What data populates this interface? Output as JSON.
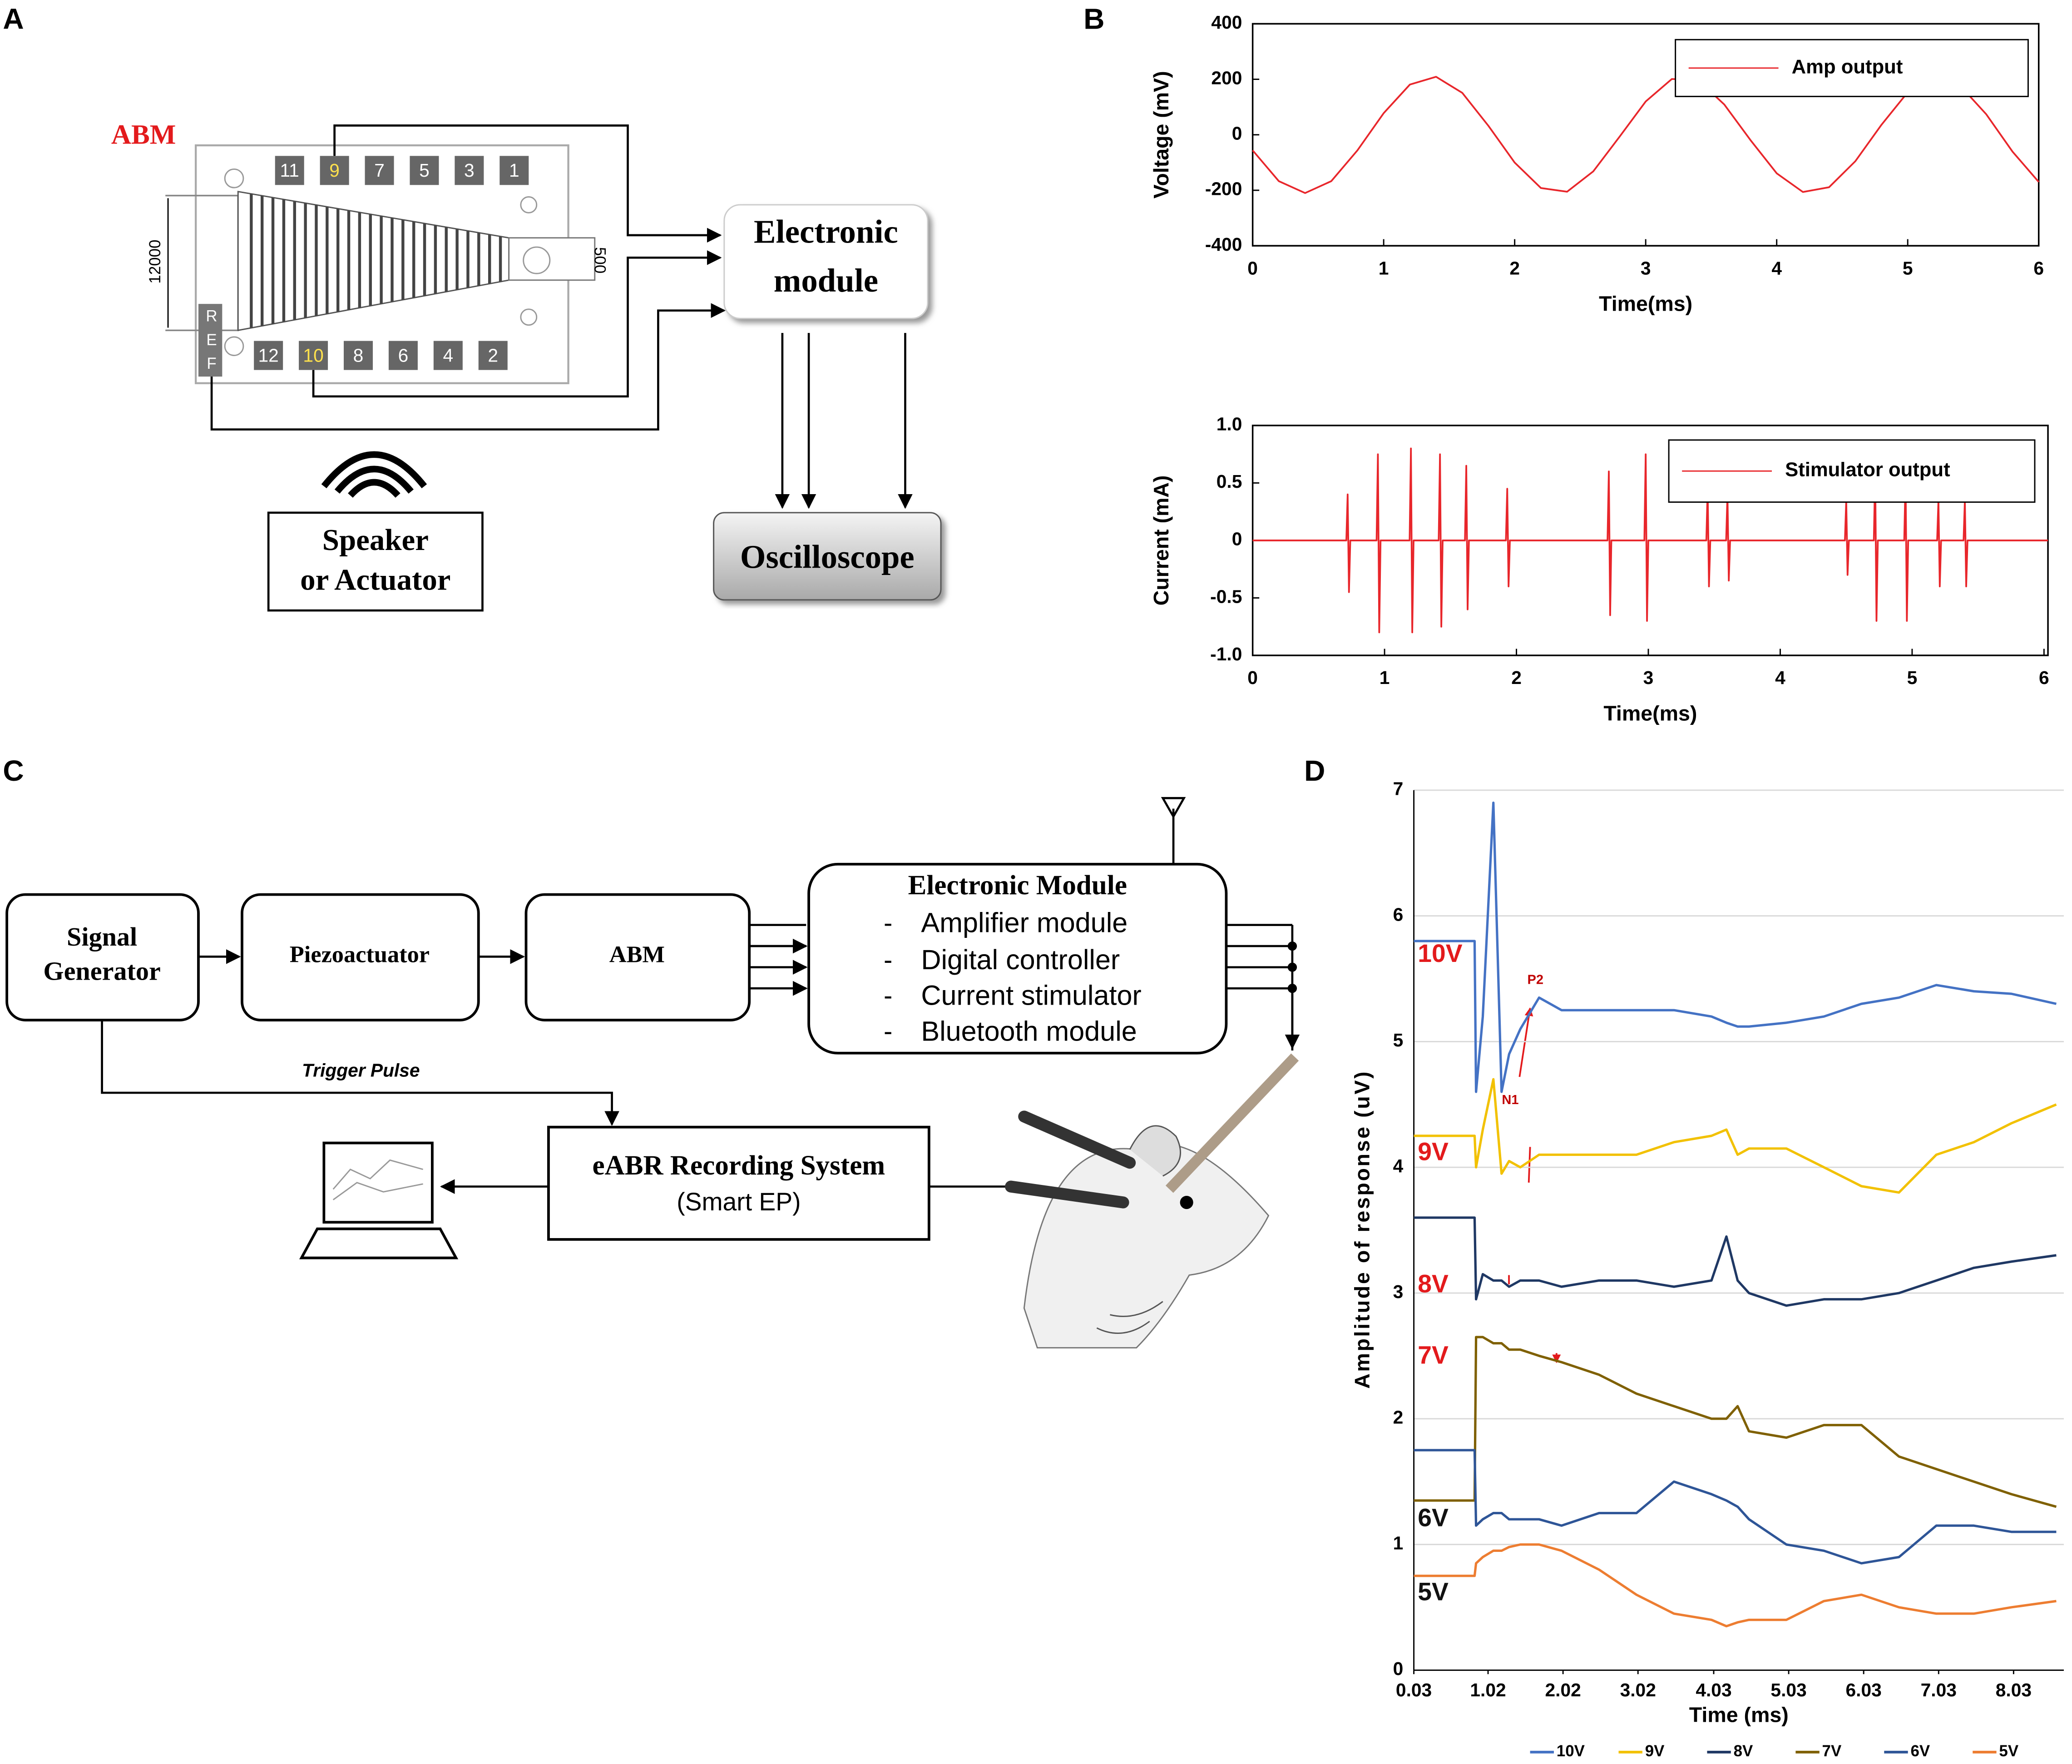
{
  "panel_labels": [
    "A",
    "B",
    "C",
    "D"
  ],
  "diagram_a": {
    "abm_label": "ABM",
    "electrodes_top": [
      "11",
      "9",
      "7",
      "5",
      "3",
      "1"
    ],
    "electrodes_bottom": [
      "12",
      "10",
      "8",
      "6",
      "4",
      "2"
    ],
    "ref": [
      "R",
      "E",
      "F"
    ],
    "dimension_left": "12000",
    "dimension_right": "500",
    "electronic_module": [
      "Electronic",
      "module"
    ],
    "speaker": [
      "Speaker",
      "or Actuator"
    ],
    "oscilloscope": "Oscilloscope"
  },
  "diagram_c": {
    "signal_generator": [
      "Signal",
      "Generator"
    ],
    "piezoactuator": "Piezoactuator",
    "abm": "ABM",
    "electronic_module": {
      "title": "Electronic Module",
      "bullet": "-",
      "items": [
        "Amplifier module",
        "Digital controller",
        "Current stimulator",
        "Bluetooth module"
      ]
    },
    "trigger": "Trigger Pulse",
    "eabr": {
      "title": "eABR Recording System",
      "subtitle": "(Smart EP)"
    }
  },
  "chart_data": [
    {
      "type": "line",
      "x_label": "Time(ms)",
      "y_label": "Voltage (mV)",
      "x": [
        0,
        0.2,
        0.4,
        0.6,
        0.8,
        1.0,
        1.2,
        1.4,
        1.6,
        1.8,
        2.0,
        2.2,
        2.4,
        2.6,
        2.8,
        3.0,
        3.2,
        3.4,
        3.6,
        3.8,
        4.0,
        4.2,
        4.4,
        4.6,
        4.8,
        5.0,
        5.2,
        5.4,
        5.6,
        5.8,
        6.0
      ],
      "series": [
        {
          "name": "Amp output",
          "color": "#e8262b",
          "values": [
            -56,
            -167,
            -210,
            -167,
            -56,
            78,
            181,
            209,
            151,
            32,
            -100,
            -192,
            -205,
            -132,
            -7,
            120,
            201,
            197,
            109,
            -19,
            -139,
            -206,
            -189,
            -95,
            36,
            153,
            209,
            177,
            74,
            -61,
            -170
          ]
        }
      ],
      "xlim": [
        0,
        6
      ],
      "ylim": [
        -400,
        400
      ],
      "xticks": [
        0,
        1,
        2,
        3,
        4,
        5,
        6
      ],
      "yticks": [
        -400,
        -200,
        0,
        200,
        400
      ],
      "grid": false,
      "legend": "upper right"
    },
    {
      "type": "line",
      "x_label": "Time(ms)",
      "y_label": "Current (mA)",
      "x": [
        0,
        0.71,
        0.72,
        0.73,
        0.74,
        0.94,
        0.95,
        0.96,
        0.97,
        1.19,
        1.2,
        1.21,
        1.22,
        1.41,
        1.42,
        1.43,
        1.44,
        1.61,
        1.62,
        1.63,
        1.64,
        1.92,
        1.93,
        1.94,
        1.95,
        2.69,
        2.7,
        2.71,
        2.72,
        2.97,
        2.98,
        2.99,
        3.0,
        3.44,
        3.45,
        3.46,
        3.47,
        3.59,
        3.6,
        3.61,
        3.62,
        4.49,
        4.5,
        4.51,
        4.52,
        4.71,
        4.72,
        4.73,
        4.74,
        4.94,
        4.95,
        4.96,
        4.97,
        5.19,
        5.2,
        5.21,
        5.22,
        5.39,
        5.4,
        5.41,
        5.42,
        6.03
      ],
      "series": [
        {
          "name": "Stimulator output",
          "color": "#e8262b",
          "values": [
            0,
            0,
            0.4,
            -0.45,
            0,
            0,
            0.75,
            -0.8,
            0,
            0,
            0.8,
            -0.8,
            0,
            0,
            0.75,
            -0.75,
            0,
            0,
            0.65,
            -0.6,
            0,
            0,
            0.45,
            -0.4,
            0,
            0,
            0.6,
            -0.65,
            0,
            0,
            0.75,
            -0.7,
            0,
            0,
            0.45,
            -0.4,
            0,
            0,
            0.4,
            -0.35,
            0,
            0,
            0.35,
            -0.3,
            0,
            0,
            0.6,
            -0.7,
            0,
            0,
            0.55,
            -0.7,
            0,
            0,
            0.35,
            -0.4,
            0,
            0,
            0.35,
            -0.4,
            0,
            0
          ]
        }
      ],
      "xlim": [
        0,
        6.03
      ],
      "ylim": [
        -1,
        1
      ],
      "xticks": [
        0,
        1,
        2,
        3,
        4,
        5,
        6
      ],
      "yticks": [
        {
          "value": -1,
          "label": "-1.0"
        },
        -0.5,
        0,
        0.5,
        {
          "value": 1,
          "label": "1.0"
        }
      ],
      "grid": false,
      "legend": "upper right"
    },
    {
      "type": "line",
      "x_label": "Time (ms)",
      "y_label": "Amplitude of response (uV)",
      "x": [
        0.03,
        0.84,
        0.86,
        0.95,
        1.09,
        1.2,
        1.3,
        1.45,
        1.7,
        2.0,
        2.5,
        3.0,
        3.5,
        4.0,
        4.2,
        4.35,
        4.5,
        5.0,
        5.5,
        6.0,
        6.5,
        7.0,
        7.5,
        8.0,
        8.6
      ],
      "series": [
        {
          "name": "10V",
          "color": "#4472c4",
          "label_color": "#e31a1c",
          "values": [
            5.8,
            5.8,
            4.6,
            5.2,
            6.9,
            4.6,
            4.9,
            5.1,
            5.35,
            5.25,
            5.25,
            5.25,
            5.25,
            5.2,
            5.15,
            5.12,
            5.12,
            5.15,
            5.2,
            5.3,
            5.35,
            5.45,
            5.4,
            5.38,
            5.3
          ]
        },
        {
          "name": "9V",
          "color": "#f2c100",
          "label_color": "#e31a1c",
          "values": [
            4.25,
            4.25,
            4.0,
            4.3,
            4.7,
            3.95,
            4.05,
            4.0,
            4.1,
            4.1,
            4.1,
            4.1,
            4.2,
            4.25,
            4.3,
            4.1,
            4.15,
            4.15,
            4.0,
            3.85,
            3.8,
            4.1,
            4.2,
            4.35,
            4.5
          ]
        },
        {
          "name": "8V",
          "color": "#1f3864",
          "label_color": "#e31a1c",
          "values": [
            3.6,
            3.6,
            2.95,
            3.15,
            3.1,
            3.1,
            3.05,
            3.1,
            3.1,
            3.05,
            3.1,
            3.1,
            3.05,
            3.1,
            3.45,
            3.1,
            3.0,
            2.9,
            2.95,
            2.95,
            3.0,
            3.1,
            3.2,
            3.25,
            3.3
          ]
        },
        {
          "name": "7V",
          "color": "#7f6000",
          "label_color": "#e31a1c",
          "values": [
            1.35,
            1.35,
            2.65,
            2.65,
            2.6,
            2.6,
            2.55,
            2.55,
            2.5,
            2.45,
            2.35,
            2.2,
            2.1,
            2.0,
            2.0,
            2.1,
            1.9,
            1.85,
            1.95,
            1.95,
            1.7,
            1.6,
            1.5,
            1.4,
            1.3
          ]
        },
        {
          "name": "6V",
          "color": "#2e5597",
          "label_color": "#111111",
          "values": [
            1.75,
            1.75,
            1.15,
            1.2,
            1.25,
            1.25,
            1.2,
            1.2,
            1.2,
            1.15,
            1.25,
            1.25,
            1.5,
            1.4,
            1.35,
            1.3,
            1.2,
            1.0,
            0.95,
            0.85,
            0.9,
            1.15,
            1.15,
            1.1,
            1.1
          ]
        },
        {
          "name": "5V",
          "color": "#ed7d31",
          "label_color": "#111111",
          "values": [
            0.75,
            0.75,
            0.85,
            0.9,
            0.95,
            0.95,
            0.98,
            1.0,
            1.0,
            0.95,
            0.8,
            0.6,
            0.45,
            0.4,
            0.35,
            0.38,
            0.4,
            0.4,
            0.55,
            0.6,
            0.5,
            0.45,
            0.45,
            0.5,
            0.55
          ]
        }
      ],
      "annotations": [
        "P2",
        "N1"
      ],
      "xlim": [
        0.03,
        8.7
      ],
      "ylim": [
        0,
        7
      ],
      "xticks": [
        0.03,
        1.02,
        2.02,
        3.02,
        4.03,
        5.03,
        6.03,
        7.03,
        8.03
      ],
      "yticks": [
        0,
        1,
        2,
        3,
        4,
        5,
        6,
        7
      ],
      "grid": true,
      "legend": "bottom"
    }
  ]
}
